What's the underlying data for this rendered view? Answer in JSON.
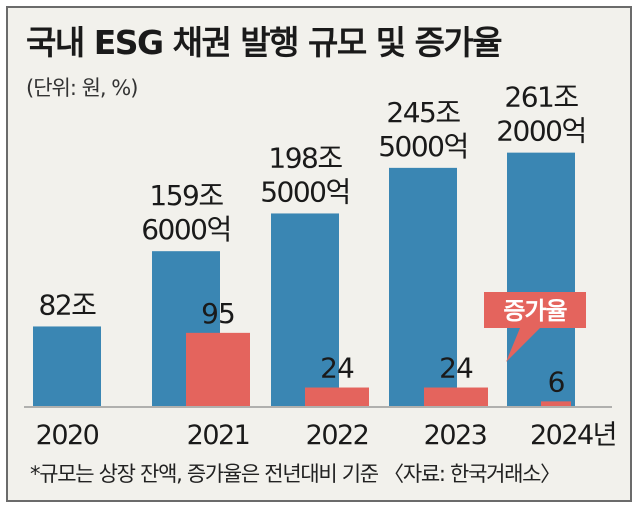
{
  "title": "국내 ESG 채권 발행 규모 및 증가율",
  "unit": "(단위: 원, %)",
  "footnote": "*규모는 상장 잔액, 증가율은 전년대비 기준 〈자료: 한국거래소〉",
  "colors": {
    "volume": "#3a86b3",
    "growth": "#e4645d",
    "background": "#f2f1ec",
    "baseline": "#9a9a9a"
  },
  "chart_data": {
    "type": "bar",
    "categories": [
      "2020",
      "2021",
      "2022",
      "2023",
      "2024년"
    ],
    "series": [
      {
        "name": "",
        "values": [
          82,
          159.6,
          198.5,
          245.5,
          261.2
        ],
        "labels": [
          [
            "82조"
          ],
          [
            "159조",
            "6000억"
          ],
          [
            "198조",
            "5000억"
          ],
          [
            "245조",
            "5000억"
          ],
          [
            "261조",
            "2000억"
          ]
        ]
      },
      {
        "name": "증가율",
        "values": [
          null,
          95,
          24,
          24,
          6
        ],
        "labels": [
          "",
          "95",
          "24",
          "24",
          "6"
        ]
      }
    ],
    "annotation": "증가율",
    "xlabel": "",
    "ylabel": "",
    "legend": "none",
    "grid": false
  }
}
